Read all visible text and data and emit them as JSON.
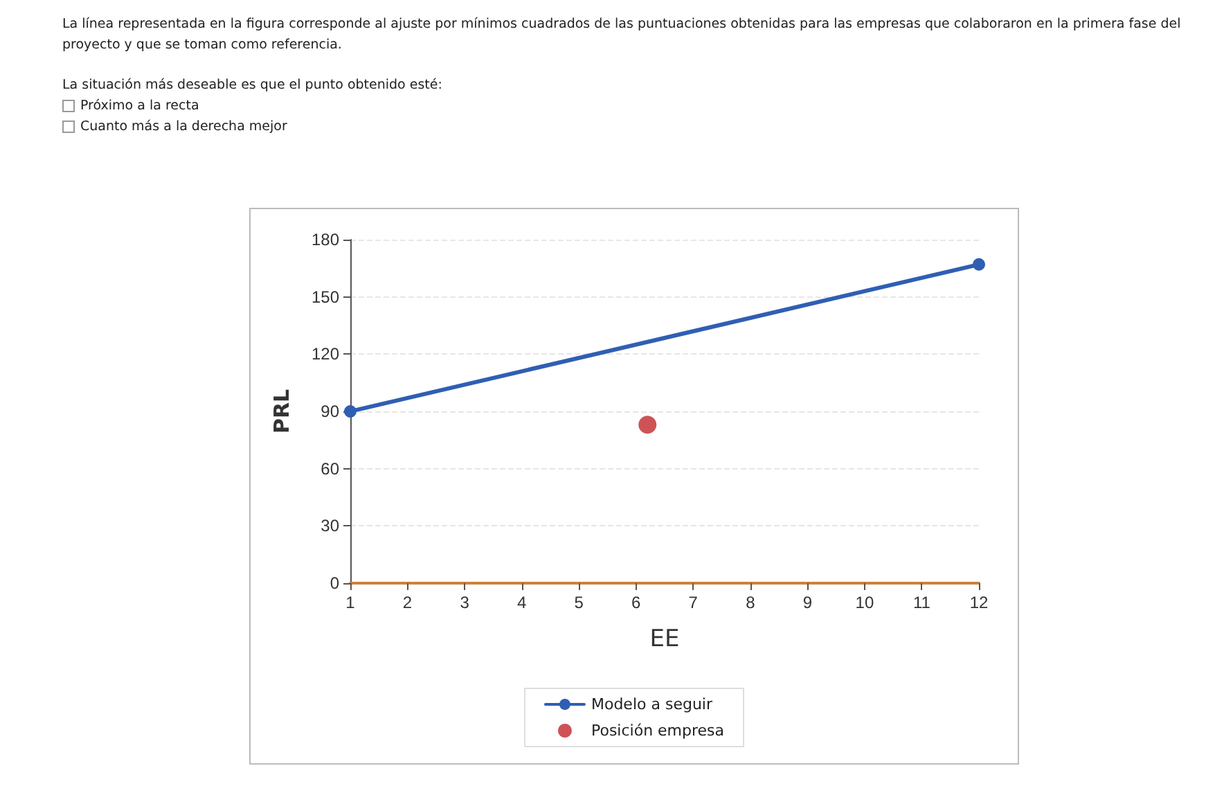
{
  "chart_data": {
    "type": "line",
    "xlabel": "EE",
    "ylabel": "PRL",
    "annotations": [
      "La línea representada en la figura corresponde al ajuste por mínimos cuadrados de las puntuaciones obtenidas para las empresas que colaboraron en la primera fase del proyecto y que se toman como referencia.",
      "La situación más deseable es que el punto obtenido esté:",
      "Próximo a la recta",
      "Cuanto más a la derecha mejor"
    ],
    "series": [
      {
        "name": "Modelo a seguir",
        "color": "#2f5fb3",
        "x": [
          1,
          12
        ],
        "values": [
          90,
          167
        ]
      },
      {
        "name": "Posición empresa",
        "type": "scatter",
        "color": "#c0282d",
        "x": [
          6.2
        ],
        "values": [
          83
        ]
      }
    ],
    "xlim": [
      1,
      12
    ],
    "xticks": [
      1,
      2,
      3,
      4,
      5,
      6,
      7,
      8,
      9,
      10,
      11,
      12
    ],
    "ylim": [
      0,
      180
    ],
    "yticks": [
      0,
      30,
      60,
      90,
      120,
      150,
      180
    ],
    "grid": "y",
    "legend": "bottom",
    "marker": "circle",
    "line_style": "solid"
  }
}
